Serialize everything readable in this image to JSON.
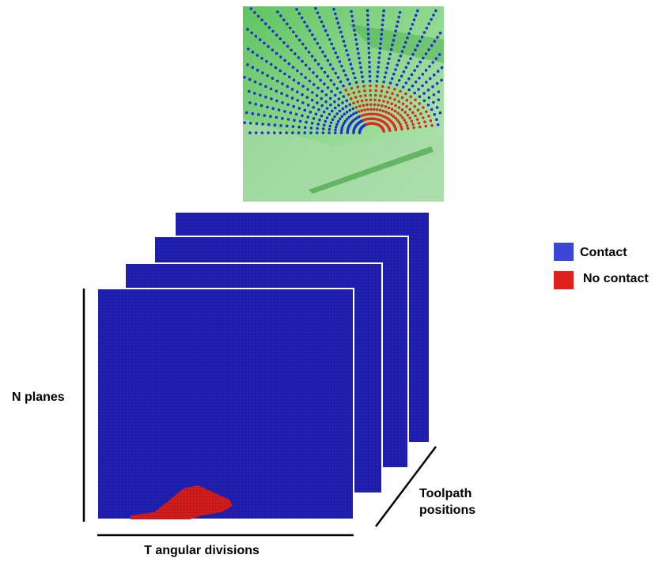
{
  "legend": {
    "contact": "Contact",
    "no_contact": "No contact"
  },
  "axes": {
    "planes": "N planes",
    "angular": "T angular divisions",
    "toolpath": [
      "Toolpath",
      "positions"
    ]
  }
}
